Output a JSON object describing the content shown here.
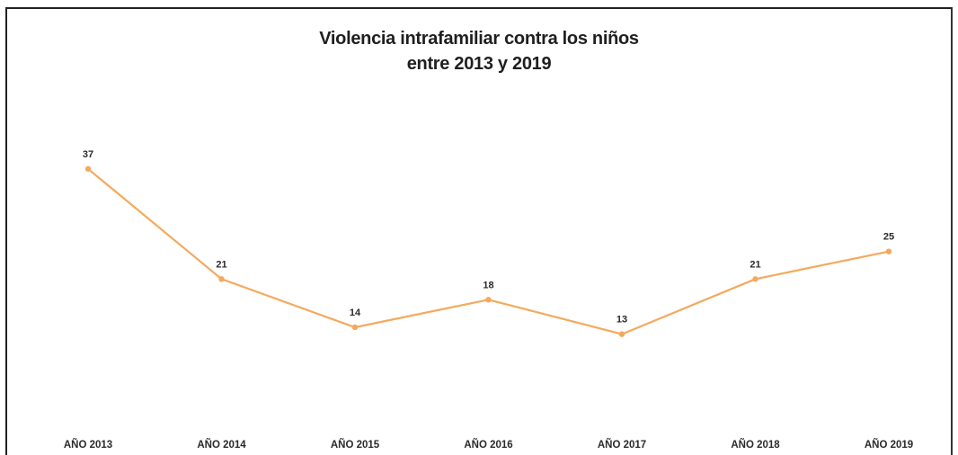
{
  "chart_data": {
    "type": "line",
    "title_line1": "Violencia intrafamiliar contra los niños",
    "title_line2": "entre 2013 y 2019",
    "categories": [
      "AÑO 2013",
      "AÑO 2014",
      "AÑO 2015",
      "AÑO 2016",
      "AÑO 2017",
      "AÑO 2018",
      "AÑO 2019"
    ],
    "series": [
      {
        "values": [
          37,
          21,
          14,
          18,
          13,
          21,
          25
        ],
        "color": "#f4a95e"
      }
    ],
    "data_labels": [
      "37",
      "21",
      "14",
      "18",
      "13",
      "21",
      "25"
    ],
    "xlabel": "",
    "ylabel": "",
    "grid": false,
    "legend": "none"
  }
}
